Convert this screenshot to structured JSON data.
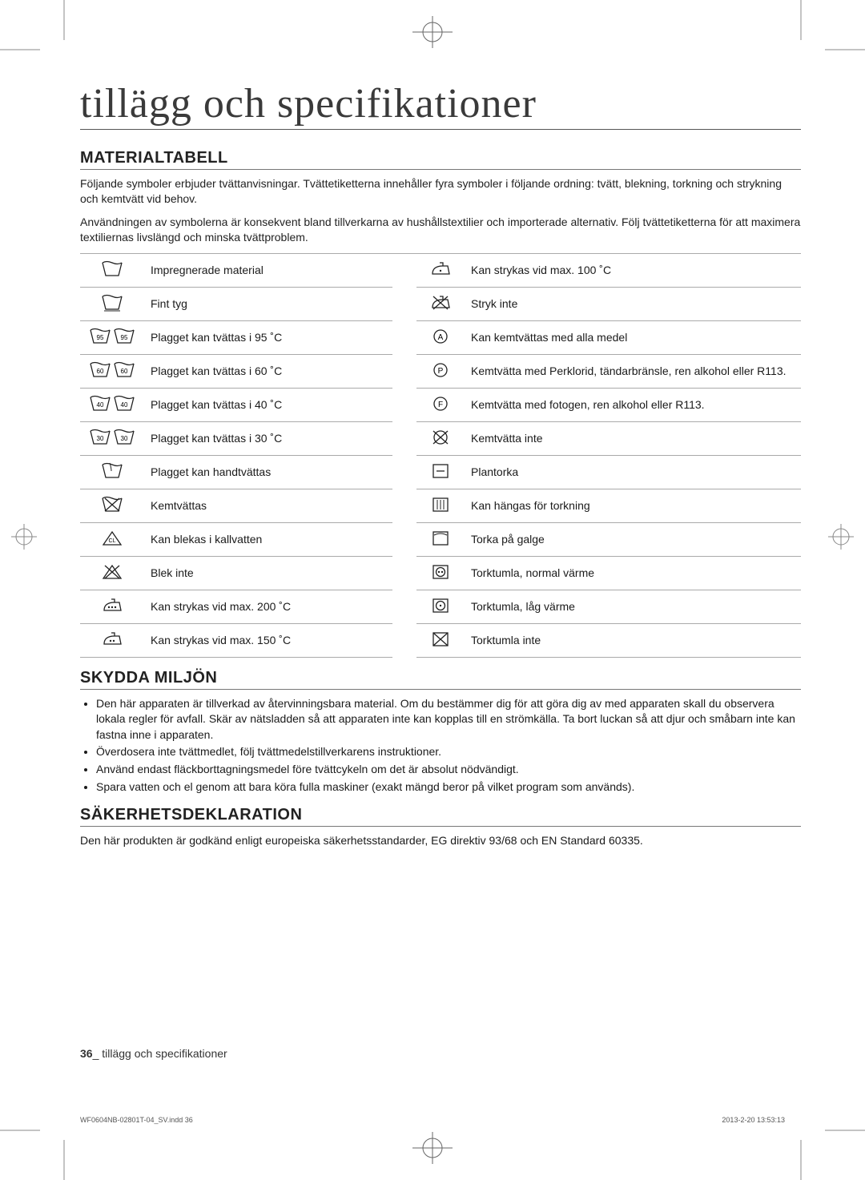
{
  "title": "tillägg och specifikationer",
  "sections": {
    "materialtabell": {
      "heading": "MATERIALTABELL",
      "intro": [
        "Följande symboler erbjuder tvättanvisningar. Tvättetiketterna innehåller fyra symboler i följande ordning: tvätt, blekning, torkning och strykning och kemtvätt vid behov.",
        "Användningen av symbolerna är konsekvent bland tillverkarna av hushållstextilier och importerade alternativ. Följ tvättetiketterna för att maximera textiliernas livslängd och minska tvättproblem."
      ],
      "rows": [
        {
          "leftIcon": "bucket-wave",
          "leftText": "Impregnerade material",
          "rightIcon": "iron-1",
          "rightText": "Kan strykas vid max. 100 ˚C"
        },
        {
          "leftIcon": "bucket-cross-under",
          "leftText": "Fint tyg",
          "rightIcon": "iron-x",
          "rightText": "Stryk inte"
        },
        {
          "leftIcon": "bucket-95-2",
          "leftText": "Plagget kan tvättas i 95 ˚C",
          "rightIcon": "circle-A",
          "rightText": "Kan kemtvättas med alla medel"
        },
        {
          "leftIcon": "bucket-60-2",
          "leftText": "Plagget kan tvättas i 60 ˚C",
          "rightIcon": "circle-P",
          "rightText": "Kemtvätta med Perklorid, tändarbränsle, ren alkohol eller R113."
        },
        {
          "leftIcon": "bucket-40-2",
          "leftText": "Plagget kan tvättas i 40 ˚C",
          "rightIcon": "circle-F",
          "rightText": "Kemtvätta med fotogen, ren alkohol eller R113."
        },
        {
          "leftIcon": "bucket-30-2",
          "leftText": "Plagget kan tvättas i 30 ˚C",
          "rightIcon": "circle-X",
          "rightText": "Kemtvätta inte"
        },
        {
          "leftIcon": "bucket-hand",
          "leftText": "Plagget kan handtvättas",
          "rightIcon": "square-dash",
          "rightText": "Plantorka"
        },
        {
          "leftIcon": "bucket-x",
          "leftText": "Kemtvättas",
          "rightIcon": "square-bars",
          "rightText": "Kan hängas för torkning"
        },
        {
          "leftIcon": "triangle-cl",
          "leftText": "Kan blekas i kallvatten",
          "rightIcon": "square-curve",
          "rightText": "Torka på galge"
        },
        {
          "leftIcon": "triangle-x",
          "leftText": "Blek inte",
          "rightIcon": "square-circle-2",
          "rightText": "Torktumla, normal värme"
        },
        {
          "leftIcon": "iron-3",
          "leftText": "Kan strykas vid max. 200 ˚C",
          "rightIcon": "square-circle-1",
          "rightText": "Torktumla, låg värme"
        },
        {
          "leftIcon": "iron-2",
          "leftText": "Kan strykas vid max. 150 ˚C",
          "rightIcon": "square-x",
          "rightText": "Torktumla inte"
        }
      ]
    },
    "miljon": {
      "heading": "SKYDDA MILJÖN",
      "bullets": [
        "Den här apparaten är tillverkad av återvinningsbara material. Om du bestämmer dig för att göra dig av med apparaten skall du observera lokala regler för avfall. Skär av nätsladden så att apparaten inte kan kopplas till en strömkälla. Ta bort luckan så att djur och småbarn inte kan fastna inne i apparaten.",
        "Överdosera inte tvättmedlet, följ tvättmedelstillverkarens instruktioner.",
        "Använd endast fläckborttagningsmedel före tvättcykeln om det är absolut nödvändigt.",
        "Spara vatten och el genom att bara köra fulla maskiner (exakt mängd beror på vilket program som används)."
      ]
    },
    "sakerhet": {
      "heading": "SÄKERHETSDEKLARATION",
      "body": "Den här produkten är godkänd enligt europeiska säkerhetsstandarder, EG direktiv 93/68 och EN Standard 60335."
    }
  },
  "footer": {
    "pageNum": "36",
    "pageLabel": "_ tillägg och specifikationer"
  },
  "indd": {
    "left": "WF0604NB-02801T-04_SV.indd   36",
    "right": "2013-2-20   13:53:13"
  }
}
